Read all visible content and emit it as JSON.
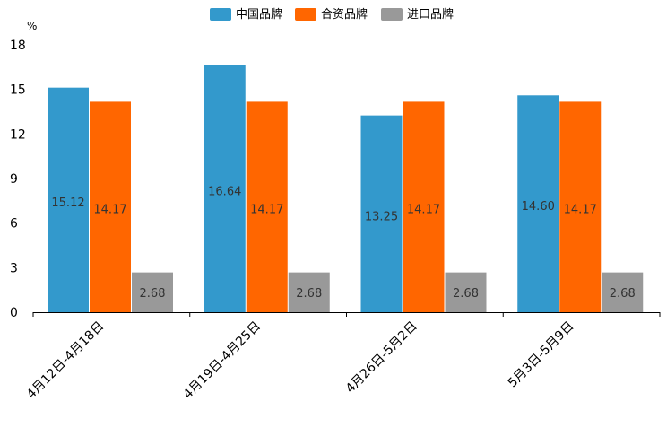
{
  "chart_data": {
    "type": "bar",
    "unit": "%",
    "categories": [
      "4月12日-4月18日",
      "4月19日-4月25日",
      "4月26日-5月2日",
      "5月3日-5月9日"
    ],
    "series": [
      {
        "name": "中国品牌",
        "color": "#3399cc",
        "values": [
          15.12,
          16.64,
          13.25,
          14.6
        ],
        "labels": [
          "15.12",
          "16.64",
          "13.25",
          "14.60"
        ]
      },
      {
        "name": "合资品牌",
        "color": "#ff6600",
        "values": [
          14.17,
          14.17,
          14.17,
          14.17
        ],
        "labels": [
          "14.17",
          "14.17",
          "14.17",
          "14.17"
        ]
      },
      {
        "name": "进口品牌",
        "color": "#999999",
        "values": [
          2.68,
          2.68,
          2.68,
          2.68
        ],
        "labels": [
          "2.68",
          "2.68",
          "2.68",
          "2.68"
        ]
      }
    ],
    "yticks": [
      0,
      3,
      6,
      9,
      12,
      15,
      18
    ],
    "ylim": [
      0,
      18
    ],
    "legend_position": "top-center",
    "grid": false
  }
}
